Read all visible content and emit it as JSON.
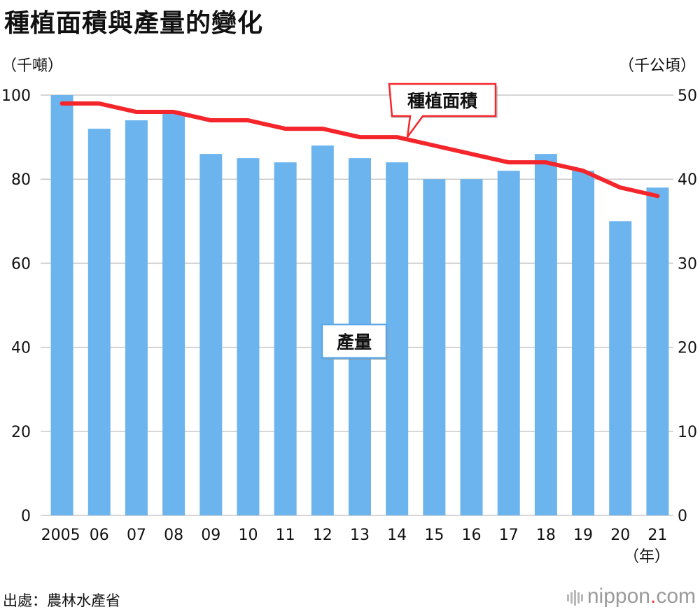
{
  "title": "種植面積與產量的變化",
  "left_unit": "（千噸）",
  "right_unit": "（千公頃）",
  "x_unit": "（年）",
  "source": "出處：農林水產省",
  "brand": {
    "name": "nippon",
    "dot": ".",
    "tld": "com"
  },
  "colors": {
    "bar": "#6cb4ee",
    "line": "#f5262b",
    "grid": "#c8c8c8"
  },
  "chart_data": {
    "type": "bar",
    "categories": [
      "2005",
      "06",
      "07",
      "08",
      "09",
      "10",
      "11",
      "12",
      "13",
      "14",
      "15",
      "16",
      "17",
      "18",
      "19",
      "20",
      "21"
    ],
    "series": [
      {
        "name": "產量",
        "type": "bar",
        "axis": "left",
        "values": [
          100,
          92,
          94,
          96,
          86,
          85,
          84,
          88,
          85,
          84,
          80,
          80,
          82,
          86,
          82,
          70,
          78
        ]
      },
      {
        "name": "種植面積",
        "type": "line",
        "axis": "right",
        "values": [
          49,
          49,
          48,
          48,
          47,
          47,
          46,
          46,
          45,
          45,
          44,
          43,
          42,
          42,
          41,
          39,
          38
        ]
      }
    ],
    "y_left": {
      "range": [
        0,
        100
      ],
      "ticks": [
        0,
        20,
        40,
        60,
        80,
        100
      ]
    },
    "y_right": {
      "range": [
        0,
        50
      ],
      "ticks": [
        0,
        10,
        20,
        30,
        40,
        50
      ]
    },
    "grid": true
  }
}
